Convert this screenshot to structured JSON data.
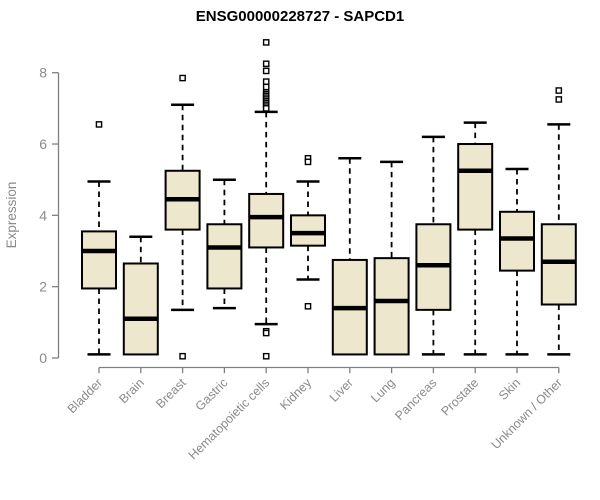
{
  "chart_data": {
    "type": "boxplot",
    "title": "ENSG00000228727 - SAPCD1",
    "ylabel": "Expression",
    "xlabel": "",
    "ylim": [
      0,
      8.9
    ],
    "yticks": [
      0,
      2,
      4,
      6,
      8
    ],
    "ytick_labels": [
      "0",
      "2",
      "4",
      "6",
      "8"
    ],
    "grid": false,
    "legend": "none",
    "categories": [
      "Bladder",
      "Brain",
      "Breast",
      "Gastric",
      "Hematopoietic cells",
      "Kidney",
      "Liver",
      "Lung",
      "Pancreas",
      "Prostate",
      "Skin",
      "Unknown / Other"
    ],
    "series": [
      {
        "category": "Bladder",
        "whisker_low": 0.1,
        "q1": 1.95,
        "median": 3.0,
        "q3": 3.55,
        "whisker_high": 4.95,
        "outliers": [
          6.55
        ]
      },
      {
        "category": "Brain",
        "whisker_low": 0.1,
        "q1": 0.1,
        "median": 1.1,
        "q3": 2.65,
        "whisker_high": 3.4,
        "outliers": []
      },
      {
        "category": "Breast",
        "whisker_low": 1.35,
        "q1": 3.6,
        "median": 4.45,
        "q3": 5.25,
        "whisker_high": 7.1,
        "outliers": [
          7.85,
          0.05
        ]
      },
      {
        "category": "Gastric",
        "whisker_low": 1.4,
        "q1": 1.95,
        "median": 3.1,
        "q3": 3.75,
        "whisker_high": 5.0,
        "outliers": []
      },
      {
        "category": "Hematopoietic cells",
        "whisker_low": 0.95,
        "q1": 3.1,
        "median": 3.95,
        "q3": 4.6,
        "whisker_high": 6.9,
        "outliers": [
          8.85,
          8.25,
          8.05,
          7.75,
          7.6,
          7.45,
          7.4,
          7.35,
          7.3,
          7.25,
          7.2,
          7.15,
          7.1,
          7.05,
          7.0,
          0.75,
          0.7,
          0.05
        ]
      },
      {
        "category": "Kidney",
        "whisker_low": 2.2,
        "q1": 3.15,
        "median": 3.5,
        "q3": 4.0,
        "whisker_high": 4.95,
        "outliers": [
          5.6,
          5.5,
          1.45
        ]
      },
      {
        "category": "Liver",
        "whisker_low": 0.1,
        "q1": 0.1,
        "median": 1.4,
        "q3": 2.75,
        "whisker_high": 5.6,
        "outliers": []
      },
      {
        "category": "Lung",
        "whisker_low": 0.1,
        "q1": 0.1,
        "median": 1.6,
        "q3": 2.8,
        "whisker_high": 5.5,
        "outliers": []
      },
      {
        "category": "Pancreas",
        "whisker_low": 0.1,
        "q1": 1.35,
        "median": 2.6,
        "q3": 3.75,
        "whisker_high": 6.2,
        "outliers": []
      },
      {
        "category": "Prostate",
        "whisker_low": 0.1,
        "q1": 3.6,
        "median": 5.25,
        "q3": 6.0,
        "whisker_high": 6.6,
        "outliers": []
      },
      {
        "category": "Skin",
        "whisker_low": 0.1,
        "q1": 2.45,
        "median": 3.35,
        "q3": 4.1,
        "whisker_high": 5.3,
        "outliers": []
      },
      {
        "category": "Unknown / Other",
        "whisker_low": 0.1,
        "q1": 1.5,
        "median": 2.7,
        "q3": 3.75,
        "whisker_high": 6.55,
        "outliers": [
          7.5,
          7.25
        ]
      }
    ]
  },
  "colors": {
    "box_fill": "#EDE8CD",
    "box_stroke": "#000000",
    "median": "#000000",
    "whisker": "#000000",
    "outlier_stroke": "#000000",
    "outlier_fill": "#ffffff",
    "axis": "#808080",
    "tick_text": "#8a8a8a",
    "title": "#000000",
    "background": "#ffffff"
  }
}
